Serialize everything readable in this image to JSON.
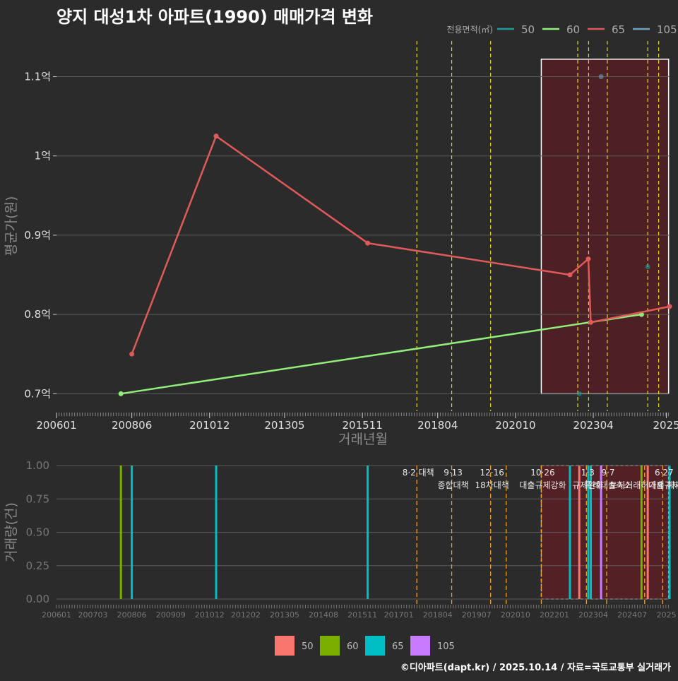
{
  "title": "양지 대성1차 아파트(1990) 매매가격 변화",
  "footer": "©디아파트(dapt.kr) / 2025.10.14 / 자료=국토교통부 실거래가",
  "colors": {
    "background": "#2b2b2b",
    "s50_line": "#1a9a9a",
    "s60_line": "#90ee7a",
    "s65_line": "#e05a5a",
    "s105_line": "#6ea0c0",
    "bar50": "#f8766d",
    "bar60": "#7cae00",
    "bar65": "#00bfc4",
    "bar105": "#c77cff",
    "policy_line": "#e8d800",
    "policy_line_bottom": "#f0a020",
    "highlight_fill": "#5a1e24"
  },
  "chart_data": [
    {
      "type": "line",
      "title": "양지 대성1차 아파트(1990) 매매가격 변화",
      "xlabel": "거래년월",
      "ylabel": "평균가(원)",
      "x_ticks": [
        "200601",
        "200806",
        "201012",
        "201305",
        "201511",
        "201804",
        "202010",
        "202304",
        "2025"
      ],
      "x_tick_values": [
        2006.0,
        2008.42,
        2010.92,
        2013.33,
        2015.83,
        2018.25,
        2020.75,
        2023.25,
        2025.6
      ],
      "xlim": [
        2006.0,
        2025.7
      ],
      "y_ticks": [
        "0.7억",
        "0.8억",
        "0.9억",
        "1억",
        "1.1억"
      ],
      "y_tick_values": [
        0.7,
        0.8,
        0.9,
        1.0,
        1.1
      ],
      "ylim": [
        0.678,
        1.145
      ],
      "legend_title": "전용면적(㎡)",
      "legend": [
        {
          "label": "50",
          "color": "#1a9a9a"
        },
        {
          "label": "60",
          "color": "#90ee7a"
        },
        {
          "label": "65",
          "color": "#e05a5a"
        },
        {
          "label": "105",
          "color": "#6ea0c0"
        }
      ],
      "series": [
        {
          "name": "60",
          "color": "#90ee7a",
          "points": [
            [
              2008.07,
              0.7
            ],
            [
              2024.8,
              0.8
            ]
          ]
        },
        {
          "name": "65",
          "color": "#e05a5a",
          "points": [
            [
              2008.42,
              0.75
            ],
            [
              2011.13,
              1.025
            ],
            [
              2016.0,
              0.89
            ],
            [
              2022.5,
              0.85
            ],
            [
              2023.09,
              0.87
            ],
            [
              2023.17,
              0.79
            ],
            [
              2025.7,
              0.81
            ]
          ]
        }
      ],
      "isolated_points": [
        {
          "series": "105",
          "x": 2023.5,
          "y": 1.1
        },
        {
          "series": "50",
          "x": 2025.0,
          "y": 0.86
        },
        {
          "series": "50",
          "x": 2022.8,
          "y": 0.7
        }
      ],
      "policy_dates": [
        2017.58,
        2018.7,
        2019.95,
        2022.75,
        2023.1,
        2023.7,
        2025.0,
        2025.35
      ],
      "highlight_range": [
        2021.58,
        2025.67
      ]
    },
    {
      "type": "bar",
      "ylabel": "거래량(건)",
      "x_ticks": [
        "200601",
        "200703",
        "200806",
        "200909",
        "201012",
        "201202",
        "201305",
        "201408",
        "201511",
        "201701",
        "201804",
        "201907",
        "202010",
        "202201",
        "202304",
        "202407",
        "2025"
      ],
      "x_tick_values": [
        2006.0,
        2007.17,
        2008.42,
        2009.67,
        2010.92,
        2012.08,
        2013.33,
        2014.58,
        2015.83,
        2017.0,
        2018.25,
        2019.5,
        2020.75,
        2022.0,
        2023.25,
        2024.5,
        2025.6
      ],
      "xlim": [
        2006.0,
        2025.7
      ],
      "y_ticks": [
        "0.00",
        "0.25",
        "0.50",
        "0.75",
        "1.00"
      ],
      "y_tick_values": [
        0.0,
        0.25,
        0.5,
        0.75,
        1.0
      ],
      "ylim": [
        0.0,
        1.0
      ],
      "legend": [
        {
          "label": "50",
          "color": "#f8766d"
        },
        {
          "label": "60",
          "color": "#7cae00"
        },
        {
          "label": "65",
          "color": "#00bfc4"
        },
        {
          "label": "105",
          "color": "#c77cff"
        }
      ],
      "bars": [
        {
          "x": 2008.07,
          "value": 1,
          "series": "60"
        },
        {
          "x": 2008.42,
          "value": 1,
          "series": "65"
        },
        {
          "x": 2011.13,
          "value": 1,
          "series": "65"
        },
        {
          "x": 2016.0,
          "value": 1,
          "series": "65"
        },
        {
          "x": 2022.5,
          "value": 1,
          "series": "65"
        },
        {
          "x": 2022.8,
          "value": 1,
          "series": "50"
        },
        {
          "x": 2023.09,
          "value": 1,
          "series": "65"
        },
        {
          "x": 2023.17,
          "value": 1,
          "series": "65"
        },
        {
          "x": 2023.5,
          "value": 1,
          "series": "105"
        },
        {
          "x": 2024.8,
          "value": 1,
          "series": "60"
        },
        {
          "x": 2025.0,
          "value": 1,
          "series": "50"
        },
        {
          "x": 2025.7,
          "value": 1,
          "series": "65"
        }
      ],
      "policy_events": [
        {
          "date": 2017.58,
          "line1": "8·2 대책",
          "line2": ""
        },
        {
          "date": 2018.7,
          "line1": "9·13",
          "line2": "종합대책"
        },
        {
          "date": 2019.95,
          "line1": "12·16",
          "line2": "18차대책"
        },
        {
          "date": 2020.45,
          "line1": "",
          "line2": ""
        },
        {
          "date": 2021.58,
          "line1": "10·26",
          "line2": "대출규제강화"
        },
        {
          "date": 2023.03,
          "line1": "1·3",
          "line2": "규제완화"
        },
        {
          "date": 2023.68,
          "line1": "9·7",
          "line2": "특례대출축소"
        },
        {
          "date": 2024.9,
          "line1": "",
          "line2": "토지거래허가제 해제"
        },
        {
          "date": 2025.48,
          "line1": "6·27",
          "line2": "대출규제"
        }
      ],
      "highlight_range": [
        2021.58,
        2025.67
      ]
    }
  ]
}
